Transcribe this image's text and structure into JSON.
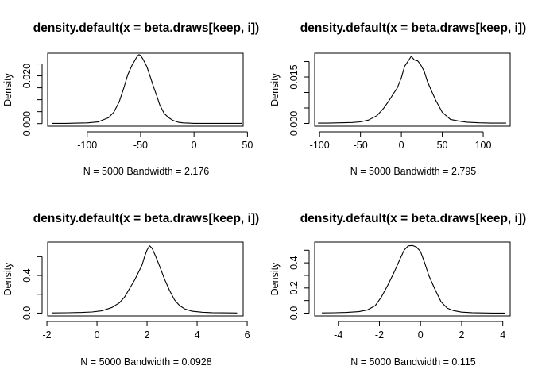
{
  "chart_data": [
    {
      "type": "line",
      "title": "density.default(x = beta.draws[keep, i])",
      "xlabel": "N = 5000   Bandwidth = 2.176",
      "ylabel": "Density",
      "xlim": [
        -137,
        46
      ],
      "ylim": [
        -0.0011,
        0.0295
      ],
      "xticks": [
        -100,
        -50,
        0,
        50
      ],
      "xtick_labels": [
        "-100",
        "-50",
        "0",
        "50"
      ],
      "yticks": [
        0.0,
        0.01,
        0.02
      ],
      "ytick_labels": [
        "0.000",
        "",
        "0.020"
      ],
      "ytick_minor": [
        0.005,
        0.015,
        0.025
      ],
      "grid": false,
      "series": [
        {
          "x": [
            -133,
            -120,
            -110,
            -100,
            -90,
            -80,
            -75,
            -70,
            -66,
            -62,
            -58,
            -56,
            -54,
            -52,
            -51,
            -50,
            -48,
            -46,
            -44,
            -42,
            -40,
            -38,
            -35,
            -32,
            -28,
            -24,
            -20,
            -15,
            -10,
            -5,
            0,
            10,
            20,
            30,
            40,
            45
          ],
          "y": [
            0.0001,
            0.0001,
            0.0002,
            0.0003,
            0.0007,
            0.0025,
            0.0048,
            0.0092,
            0.0145,
            0.0205,
            0.0245,
            0.026,
            0.0276,
            0.0288,
            0.0288,
            0.0285,
            0.0272,
            0.0255,
            0.0237,
            0.021,
            0.0183,
            0.0155,
            0.0118,
            0.0078,
            0.0043,
            0.0026,
            0.0014,
            0.0006,
            0.0003,
            0.0002,
            0.0001,
            0.0001,
            0.0001,
            0.0001,
            0.0001,
            0.0001
          ]
        }
      ]
    },
    {
      "type": "line",
      "title": "density.default(x = beta.draws[keep, i])",
      "xlabel": "N = 5000   Bandwidth = 2.795",
      "ylabel": "Density",
      "xlim": [
        -106,
        133
      ],
      "ylim": [
        -0.0009,
        0.0227
      ],
      "xticks": [
        -100,
        -50,
        0,
        50,
        100
      ],
      "xtick_labels": [
        "-100",
        "-50",
        "0",
        "50",
        "100"
      ],
      "yticks": [
        0.0,
        0.005,
        0.01,
        0.015,
        0.02
      ],
      "ytick_labels": [
        "0.000",
        "",
        "",
        "0.015",
        ""
      ],
      "grid": false,
      "series": [
        {
          "x": [
            -102,
            -90,
            -75,
            -60,
            -50,
            -40,
            -30,
            -22,
            -15,
            -10,
            -5,
            0,
            4,
            8,
            12,
            16,
            20,
            24,
            28,
            32,
            37,
            42,
            50,
            60,
            70,
            80,
            95,
            110,
            128
          ],
          "y": [
            0.0001,
            0.0001,
            0.0002,
            0.0003,
            0.0005,
            0.0011,
            0.0025,
            0.0048,
            0.0074,
            0.0095,
            0.0115,
            0.0148,
            0.0185,
            0.02,
            0.0217,
            0.0205,
            0.0202,
            0.0188,
            0.0168,
            0.0135,
            0.0104,
            0.0075,
            0.0036,
            0.0013,
            0.0008,
            0.0004,
            0.0002,
            0.0001,
            0.0001
          ]
        }
      ]
    },
    {
      "type": "line",
      "title": "density.default(x = beta.draws[keep, i])",
      "xlabel": "N = 5000   Bandwidth = 0.0928",
      "ylabel": "Density",
      "xlim": [
        -1.97,
        5.84
      ],
      "ylim": [
        -0.03,
        0.755
      ],
      "xticks": [
        -2,
        0,
        2,
        4,
        6
      ],
      "xtick_labels": [
        "-2",
        "0",
        "2",
        "4",
        "6"
      ],
      "yticks": [
        0.0,
        0.2,
        0.4,
        0.6
      ],
      "ytick_labels": [
        "0.0",
        "",
        "0.4",
        ""
      ],
      "grid": false,
      "series": [
        {
          "x": [
            -1.8,
            -1.2,
            -0.6,
            -0.2,
            0.2,
            0.6,
            0.9,
            1.1,
            1.3,
            1.5,
            1.65,
            1.8,
            1.9,
            2.0,
            2.1,
            2.2,
            2.35,
            2.5,
            2.7,
            2.9,
            3.1,
            3.3,
            3.5,
            3.8,
            4.2,
            4.6,
            5.0,
            5.4,
            5.6
          ],
          "y": [
            0.002,
            0.004,
            0.007,
            0.012,
            0.025,
            0.06,
            0.11,
            0.17,
            0.26,
            0.35,
            0.43,
            0.51,
            0.6,
            0.67,
            0.715,
            0.69,
            0.6,
            0.5,
            0.36,
            0.24,
            0.14,
            0.08,
            0.045,
            0.02,
            0.01,
            0.005,
            0.003,
            0.002,
            0.001
          ]
        }
      ]
    },
    {
      "type": "line",
      "title": "density.default(x = beta.draws[keep, i])",
      "xlabel": "N = 5000   Bandwidth = 0.115",
      "ylabel": "Density",
      "xlim": [
        -5.15,
        4.36
      ],
      "ylim": [
        -0.022,
        0.565
      ],
      "xticks": [
        -4,
        -2,
        0,
        2,
        4
      ],
      "xtick_labels": [
        "-4",
        "-2",
        "0",
        "2",
        "4"
      ],
      "yticks": [
        0.0,
        0.1,
        0.2,
        0.3,
        0.4,
        0.5
      ],
      "ytick_labels": [
        "0.0",
        "",
        "0.2",
        "",
        "0.4",
        ""
      ],
      "grid": false,
      "series": [
        {
          "x": [
            -4.8,
            -4.2,
            -3.6,
            -3.0,
            -2.6,
            -2.2,
            -1.9,
            -1.6,
            -1.3,
            -1.0,
            -0.8,
            -0.6,
            -0.4,
            -0.2,
            0.0,
            0.2,
            0.4,
            0.7,
            1.0,
            1.3,
            1.6,
            2.0,
            2.5,
            3.0,
            3.5,
            4.1
          ],
          "y": [
            0.002,
            0.003,
            0.006,
            0.012,
            0.025,
            0.06,
            0.13,
            0.22,
            0.32,
            0.43,
            0.5,
            0.535,
            0.538,
            0.525,
            0.49,
            0.4,
            0.3,
            0.19,
            0.09,
            0.04,
            0.02,
            0.008,
            0.004,
            0.002,
            0.001,
            0.001
          ]
        }
      ]
    }
  ]
}
